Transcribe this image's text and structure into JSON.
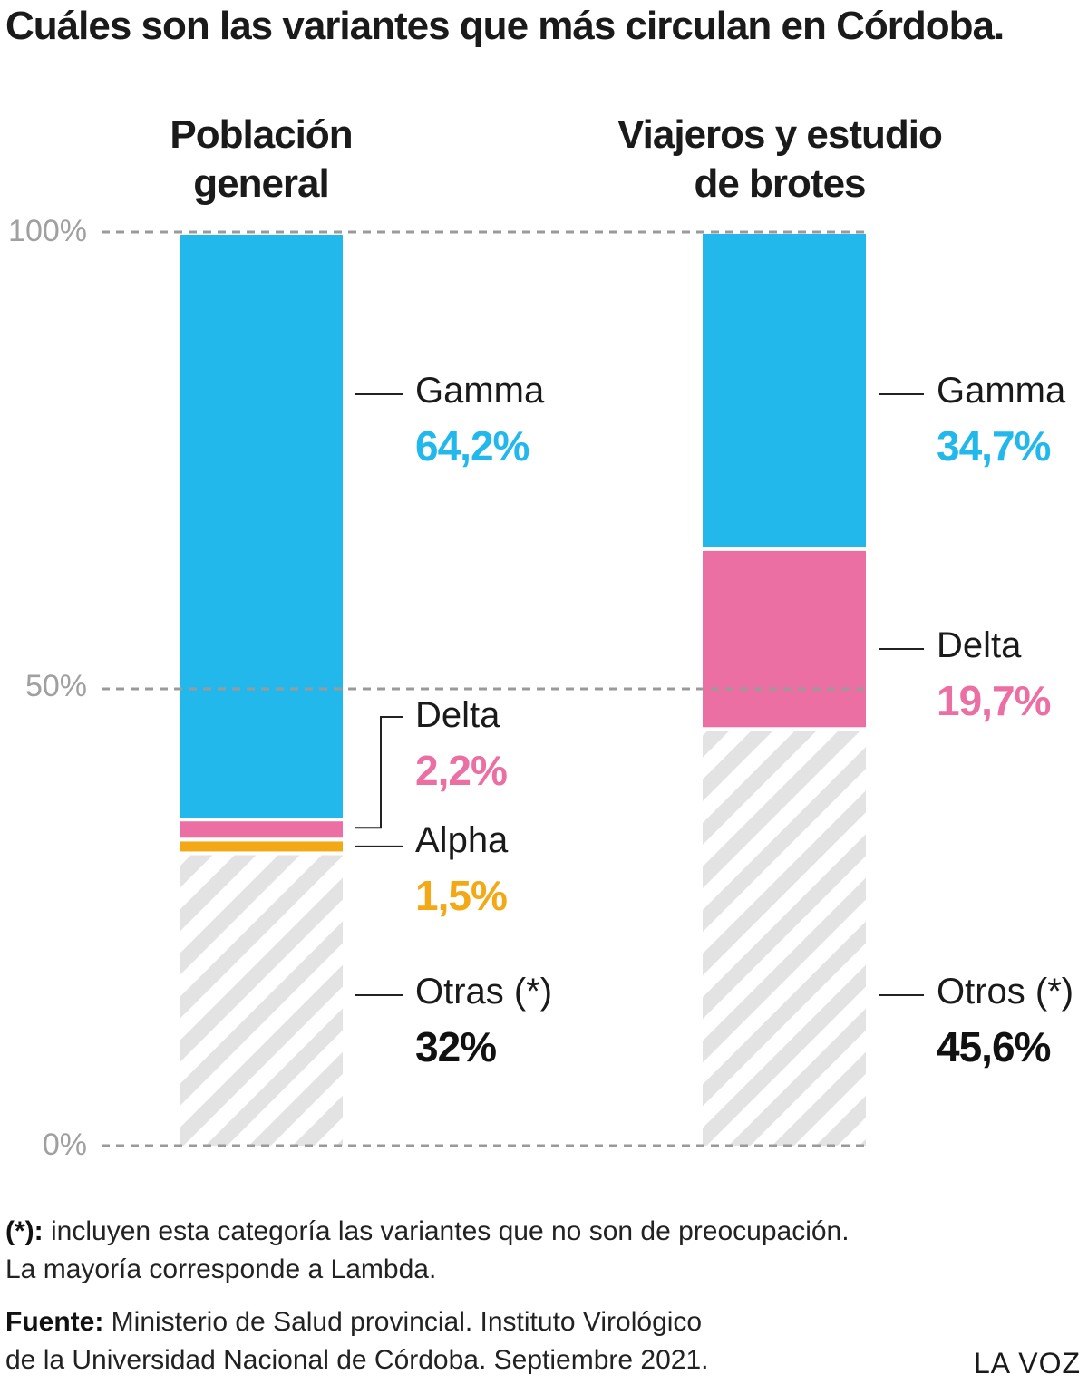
{
  "title": "Cuáles son las variantes que más circulan en Córdoba.",
  "colors": {
    "gamma": "#22b8ec",
    "delta": "#ec6fa4",
    "alpha": "#f3a816",
    "otras": "#e3e3e3",
    "grid": "#9a9a9a"
  },
  "chart_data": {
    "type": "bar",
    "stacked": true,
    "ylim": [
      0,
      100
    ],
    "yticks": [
      "0%",
      "50%",
      "100%"
    ],
    "grid": true,
    "categories": [
      "Población general",
      "Viajeros y estudio de brotes"
    ],
    "series": [
      {
        "name": "Otras (*)",
        "values": [
          32,
          null
        ]
      },
      {
        "name": "Otros (*)",
        "values": [
          null,
          45.6
        ]
      },
      {
        "name": "Alpha",
        "values": [
          1.5,
          null
        ]
      },
      {
        "name": "Delta",
        "values": [
          2.2,
          19.7
        ]
      },
      {
        "name": "Gamma",
        "values": [
          64.2,
          34.7
        ]
      }
    ]
  },
  "columns": [
    {
      "title_lines": [
        "Población",
        "general"
      ],
      "segments": [
        {
          "key": "otras",
          "value": 32,
          "name": "Otras (*)",
          "value_label": "32%"
        },
        {
          "key": "alpha",
          "value": 1.5,
          "name": "Alpha",
          "value_label": "1,5%"
        },
        {
          "key": "delta",
          "value": 2.2,
          "name": "Delta",
          "value_label": "2,2%"
        },
        {
          "key": "gamma",
          "value": 64.2,
          "name": "Gamma",
          "value_label": "64,2%"
        }
      ]
    },
    {
      "title_lines": [
        "Viajeros y estudio",
        "de brotes"
      ],
      "segments": [
        {
          "key": "otras",
          "value": 45.6,
          "name": "Otros (*)",
          "value_label": "45,6%"
        },
        {
          "key": "delta",
          "value": 19.7,
          "name": "Delta",
          "value_label": "19,7%"
        },
        {
          "key": "gamma",
          "value": 34.7,
          "name": "Gamma",
          "value_label": "34,7%"
        }
      ]
    }
  ],
  "notes": {
    "footnote_mark": "(*):",
    "footnote_line1": " incluyen esta categoría las variantes que no son de preocupación.",
    "footnote_line2": "La mayoría corresponde a Lambda.",
    "source_label": "Fuente:",
    "source_line1": " Ministerio de Salud provincial. Instituto Virológico",
    "source_line2": "de la Universidad Nacional de Córdoba. Septiembre 2021."
  },
  "brand": "LA VOZ"
}
